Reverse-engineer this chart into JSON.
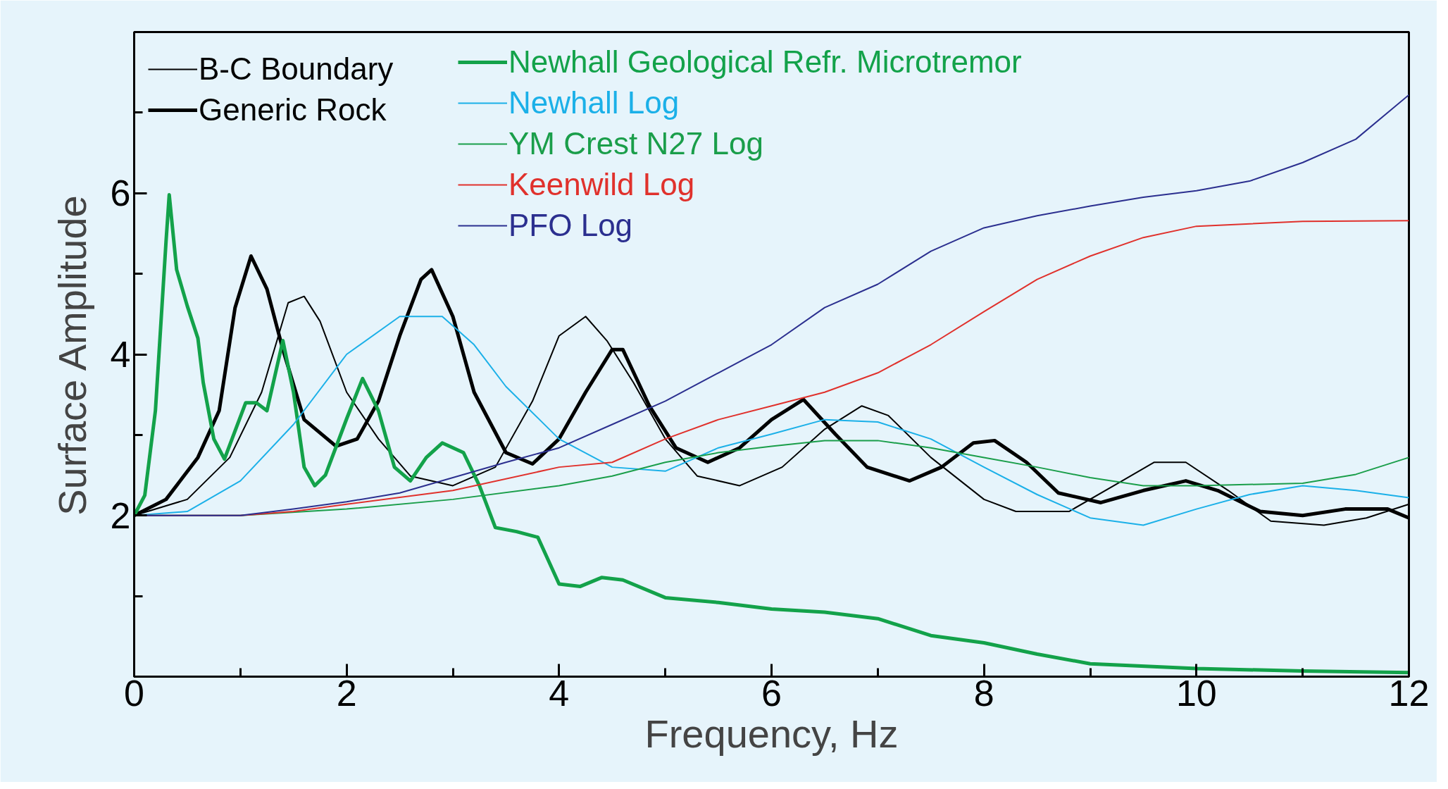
{
  "chart_data": {
    "type": "line",
    "xlabel": "Frequency, Hz",
    "ylabel": "Surface Amplitude",
    "xlim": [
      0,
      12
    ],
    "ylim": [
      0,
      8
    ],
    "xticks": [
      0,
      {
        "value": 1,
        "label": null
      },
      2,
      {
        "value": 3,
        "label": null
      },
      4,
      {
        "value": 5,
        "label": null
      },
      6,
      {
        "value": 7,
        "label": null
      },
      8,
      {
        "value": 9,
        "label": null
      },
      10,
      {
        "value": 11,
        "label": null
      },
      12
    ],
    "yticks": [
      {
        "value": 1,
        "label": null
      },
      2,
      {
        "value": 3,
        "label": null
      },
      4,
      {
        "value": 5,
        "label": null
      },
      6,
      {
        "value": 7,
        "label": null
      }
    ],
    "grid": false,
    "legend": "top left",
    "marker": "none",
    "line_style": "solid",
    "series": [
      {
        "name": "B-C Boundary",
        "color": "#000000",
        "x": [
          0,
          0.5,
          0.9,
          1.2,
          1.45,
          1.6,
          1.75,
          2.0,
          2.3,
          2.6,
          3.0,
          3.4,
          3.75,
          4.0,
          4.25,
          4.45,
          4.7,
          5.0,
          5.3,
          5.7,
          6.1,
          6.5,
          6.85,
          7.1,
          7.5,
          8.0,
          8.3,
          8.8,
          9.3,
          9.6,
          9.9,
          10.3,
          10.7,
          11.2,
          11.6,
          12
        ],
        "values": [
          2.0,
          2.2,
          2.72,
          3.53,
          4.64,
          4.72,
          4.41,
          3.53,
          2.95,
          2.49,
          2.37,
          2.6,
          3.42,
          4.23,
          4.47,
          4.17,
          3.65,
          2.95,
          2.49,
          2.37,
          2.6,
          3.07,
          3.36,
          3.24,
          2.72,
          2.2,
          2.05,
          2.05,
          2.43,
          2.66,
          2.66,
          2.31,
          1.93,
          1.88,
          1.97,
          2.14
        ]
      },
      {
        "name": "Generic Rock",
        "color": "#000000",
        "x": [
          0,
          0.3,
          0.6,
          0.8,
          0.95,
          1.1,
          1.25,
          1.4,
          1.6,
          1.9,
          2.1,
          2.3,
          2.5,
          2.7,
          2.8,
          3.0,
          3.2,
          3.5,
          3.75,
          4.0,
          4.25,
          4.5,
          4.6,
          4.85,
          5.1,
          5.4,
          5.7,
          6.0,
          6.3,
          6.6,
          6.9,
          7.3,
          7.6,
          7.9,
          8.1,
          8.4,
          8.7,
          9.1,
          9.5,
          9.9,
          10.2,
          10.6,
          11.0,
          11.4,
          11.8,
          12
        ],
        "values": [
          2.0,
          2.2,
          2.72,
          3.3,
          4.58,
          5.22,
          4.81,
          4.06,
          3.19,
          2.86,
          2.95,
          3.42,
          4.23,
          4.93,
          5.05,
          4.47,
          3.53,
          2.78,
          2.64,
          2.95,
          3.53,
          4.06,
          4.06,
          3.36,
          2.84,
          2.66,
          2.84,
          3.19,
          3.44,
          3.01,
          2.6,
          2.43,
          2.6,
          2.9,
          2.93,
          2.66,
          2.28,
          2.16,
          2.31,
          2.43,
          2.31,
          2.05,
          2.0,
          2.08,
          2.08,
          1.97
        ]
      },
      {
        "name": "Newhall Geological Refr. Microtremor",
        "color": "#13a24a",
        "x": [
          0,
          0.1,
          0.2,
          0.3,
          0.33,
          0.4,
          0.5,
          0.6,
          0.65,
          0.75,
          0.85,
          0.95,
          1.05,
          1.15,
          1.25,
          1.4,
          1.5,
          1.6,
          1.7,
          1.8,
          2.0,
          2.15,
          2.3,
          2.45,
          2.6,
          2.75,
          2.9,
          3.1,
          3.25,
          3.4,
          3.6,
          3.8,
          4.0,
          4.2,
          4.4,
          4.6,
          5.0,
          5.5,
          6.0,
          6.5,
          7.0,
          7.5,
          8.0,
          8.5,
          9.0,
          10,
          11,
          12
        ],
        "values": [
          2.0,
          2.25,
          3.3,
          5.4,
          5.98,
          5.05,
          4.6,
          4.2,
          3.65,
          2.95,
          2.7,
          3.05,
          3.4,
          3.4,
          3.3,
          4.17,
          3.53,
          2.6,
          2.37,
          2.5,
          3.2,
          3.7,
          3.3,
          2.6,
          2.43,
          2.72,
          2.9,
          2.78,
          2.37,
          1.85,
          1.8,
          1.73,
          1.15,
          1.12,
          1.23,
          1.2,
          0.98,
          0.92,
          0.84,
          0.8,
          0.72,
          0.51,
          0.42,
          0.28,
          0.16,
          0.1,
          0.07,
          0.05
        ]
      },
      {
        "name": "Newhall Log",
        "color": "#1bb0e8",
        "x": [
          0,
          0.5,
          1.0,
          1.5,
          2.0,
          2.5,
          2.9,
          3.2,
          3.5,
          4.0,
          4.5,
          5.0,
          5.5,
          6.0,
          6.5,
          7.0,
          7.5,
          8.0,
          8.5,
          9.0,
          9.5,
          10.0,
          10.5,
          11.0,
          11.5,
          12
        ],
        "values": [
          2.0,
          2.05,
          2.43,
          3.13,
          4.0,
          4.47,
          4.47,
          4.12,
          3.6,
          2.95,
          2.6,
          2.55,
          2.84,
          3.01,
          3.19,
          3.16,
          2.95,
          2.6,
          2.26,
          1.97,
          1.88,
          2.08,
          2.26,
          2.37,
          2.31,
          2.22
        ]
      },
      {
        "name": "YM Crest N27 Log",
        "color": "#1a9e4a",
        "x": [
          0,
          1,
          2,
          3,
          4,
          4.5,
          5,
          5.5,
          6,
          6.5,
          7,
          7.5,
          8,
          8.5,
          9,
          9.5,
          10,
          11,
          11.5,
          12
        ],
        "values": [
          2.0,
          2.0,
          2.08,
          2.2,
          2.37,
          2.49,
          2.66,
          2.78,
          2.86,
          2.93,
          2.93,
          2.84,
          2.72,
          2.6,
          2.47,
          2.37,
          2.37,
          2.4,
          2.51,
          2.72
        ]
      },
      {
        "name": "Keenwild Log",
        "color": "#e0312c",
        "x": [
          0,
          1,
          1.5,
          2,
          3,
          4,
          4.5,
          5,
          5.5,
          6,
          6.5,
          7,
          7.5,
          8,
          8.5,
          9,
          9.5,
          10,
          11,
          12
        ],
        "values": [
          2.0,
          2.0,
          2.05,
          2.14,
          2.31,
          2.6,
          2.66,
          2.95,
          3.19,
          3.36,
          3.53,
          3.77,
          4.12,
          4.53,
          4.93,
          5.22,
          5.45,
          5.59,
          5.65,
          5.66
        ]
      },
      {
        "name": "PFO Log",
        "color": "#2b2f8f",
        "x": [
          0,
          1,
          1.5,
          2,
          2.5,
          3,
          3.5,
          4,
          4.5,
          5,
          5.5,
          6,
          6.5,
          7,
          7.5,
          8,
          8.5,
          9,
          9.5,
          10,
          10.5,
          11,
          11.5,
          12
        ],
        "values": [
          2.0,
          2.0,
          2.08,
          2.17,
          2.28,
          2.47,
          2.66,
          2.84,
          3.13,
          3.42,
          3.77,
          4.12,
          4.58,
          4.87,
          5.28,
          5.57,
          5.72,
          5.84,
          5.95,
          6.03,
          6.15,
          6.38,
          6.67,
          7.22
        ]
      }
    ]
  }
}
